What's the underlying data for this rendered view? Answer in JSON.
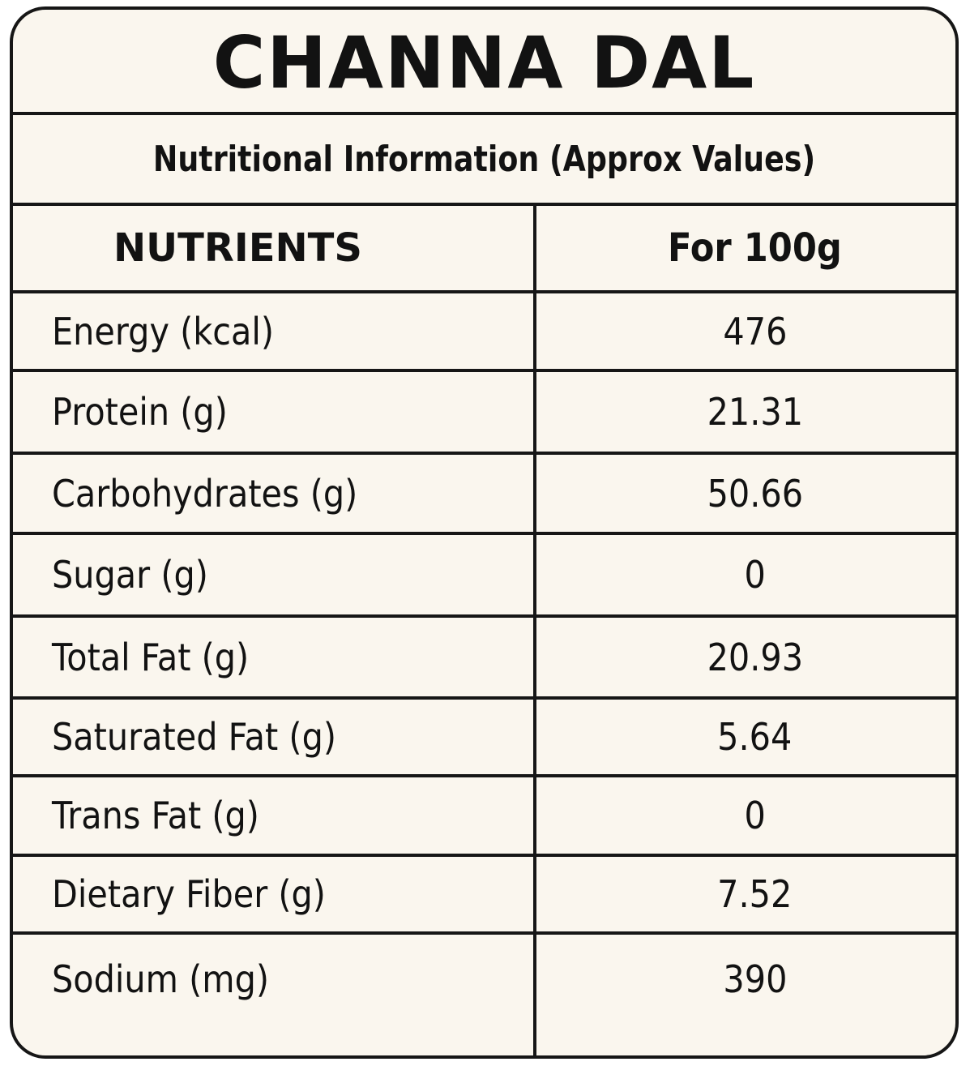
{
  "title": "CHANNA DAL",
  "subtitle": "Nutritional Information (Approx Values)",
  "table": {
    "headers": [
      "NUTRIENTS",
      "For 100g"
    ],
    "rows": [
      {
        "nutrient": "Energy (kcal)",
        "value": "476"
      },
      {
        "nutrient": "Protein (g)",
        "value": "21.31"
      },
      {
        "nutrient": "Carbohydrates (g)",
        "value": "50.66"
      },
      {
        "nutrient": "Sugar (g)",
        "value": "0"
      },
      {
        "nutrient": "Total Fat (g)",
        "value": "20.93"
      },
      {
        "nutrient": "Saturated Fat (g)",
        "value": "5.64"
      },
      {
        "nutrient": "Trans Fat (g)",
        "value": "0"
      },
      {
        "nutrient": "Dietary Fiber (g)",
        "value": "7.52"
      },
      {
        "nutrient": "Sodium (mg)",
        "value": "390"
      }
    ]
  },
  "colors": {
    "background": "#faf6ee",
    "border": "#161616",
    "text": "#121212"
  }
}
